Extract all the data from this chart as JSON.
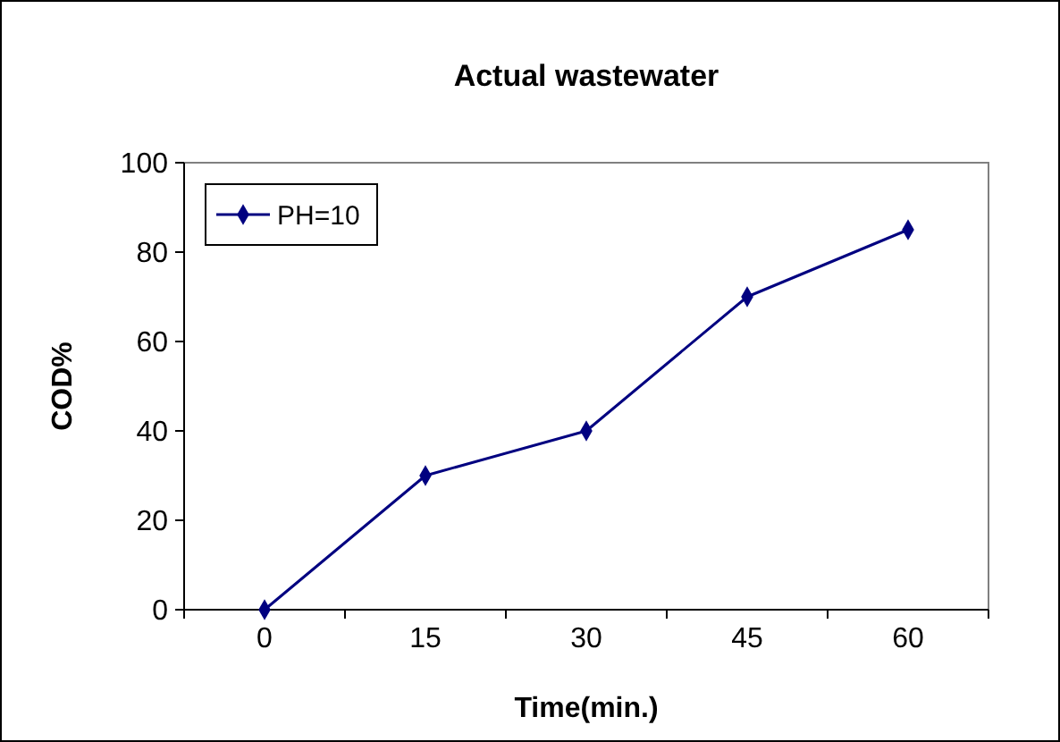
{
  "chart_data": {
    "type": "line",
    "title": "Actual wastewater",
    "xlabel": "Time(min.)",
    "ylabel": "COD%",
    "categories": [
      "0",
      "15",
      "30",
      "45",
      "60"
    ],
    "series": [
      {
        "name": "PH=10",
        "color": "#000080",
        "values": [
          0,
          30,
          40,
          70,
          85
        ]
      }
    ],
    "ylim": [
      0,
      100
    ],
    "yticks": [
      0,
      20,
      40,
      60,
      80,
      100
    ],
    "grid": false,
    "legend": "top left",
    "marker": "diamond",
    "line_style": "solid"
  }
}
